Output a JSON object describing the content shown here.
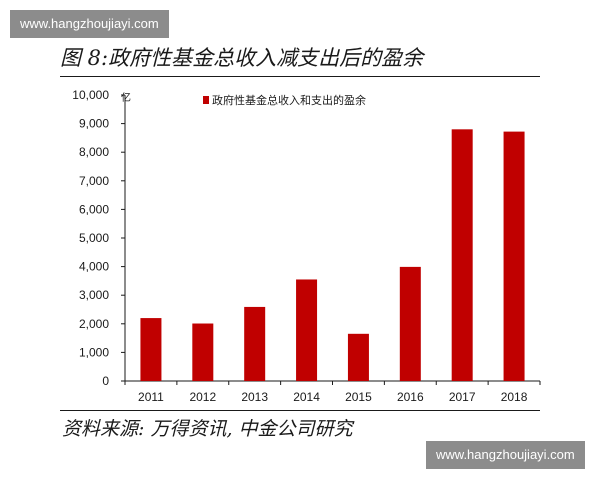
{
  "watermark": {
    "top": "www.hangzhoujiayi.com",
    "bottom": "www.hangzhoujiayi.com"
  },
  "title": "图 8:政府性基金总收入减支出后的盈余",
  "source": "资料来源:  万得资讯,  中金公司研究",
  "chart_data": {
    "type": "bar",
    "categories": [
      "2011",
      "2012",
      "2013",
      "2014",
      "2015",
      "2016",
      "2017",
      "2018"
    ],
    "series": [
      {
        "name": "政府性基金总收入和支出的盈余",
        "values": [
          2200,
          2010,
          2590,
          3550,
          1650,
          3990,
          8800,
          8720
        ],
        "color": "#c00000"
      }
    ],
    "ylim": [
      0,
      10000
    ],
    "yticks": [
      "0",
      "1,000",
      "2,000",
      "3,000",
      "4,000",
      "5,000",
      "6,000",
      "7,000",
      "8,000",
      "9,000",
      "10,000"
    ],
    "unit": "亿",
    "xlabel": "",
    "ylabel": "",
    "grid": false,
    "legend": "top"
  }
}
